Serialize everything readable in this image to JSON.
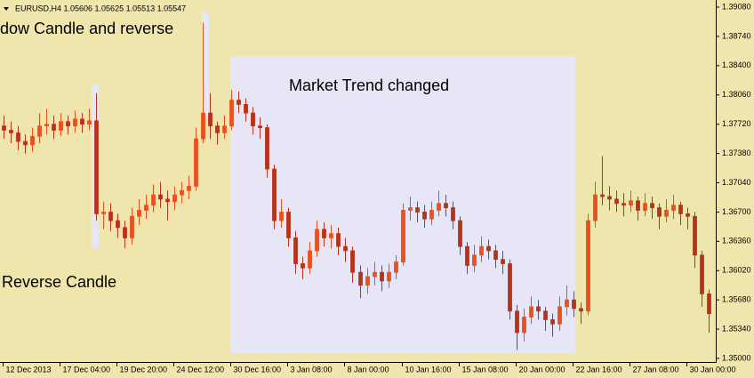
{
  "chart_data": {
    "type": "candlestick",
    "title": "EURUSD,H4  1.05606 1.05625 1.05513 1.05547",
    "annotations": [
      "dow Candle and reverse",
      "Market Trend changed",
      "Reverse Candle"
    ],
    "up_color": "#e8501e",
    "down_color": "#b8321a",
    "open": [
      1.377,
      1.3765,
      1.3762,
      1.3752,
      1.3748,
      1.3758,
      1.377,
      1.3772,
      1.3765,
      1.3775,
      1.377,
      1.3778,
      1.3772,
      1.3776,
      1.3668,
      1.367,
      1.366,
      1.3652,
      1.364,
      1.3665,
      1.3672,
      1.3678,
      1.369,
      1.3685,
      1.3682,
      1.369,
      1.3695,
      1.37,
      1.3755,
      1.3785,
      1.377,
      1.3762,
      1.377,
      1.38,
      1.3795,
      1.3785,
      1.377,
      1.3768,
      1.372,
      1.366,
      1.367,
      1.364,
      1.361,
      1.3605,
      1.3625,
      1.365,
      1.364,
      1.3645,
      1.363,
      1.3625,
      1.36,
      1.3585,
      1.3595,
      1.36,
      1.359,
      1.36,
      1.3612,
      1.3672,
      1.3675,
      1.367,
      1.3662,
      1.3672,
      1.368,
      1.3675,
      1.366,
      1.363,
      1.3608,
      1.362,
      1.363,
      1.3625,
      1.3615,
      1.361,
      1.3555,
      1.353,
      1.3548,
      1.356,
      1.3555,
      1.3545,
      1.354,
      1.356,
      1.3568,
      1.3558,
      1.3555,
      1.366,
      1.369,
      1.3688,
      1.3685,
      1.368,
      1.3678,
      1.3683,
      1.3672,
      1.368,
      1.3675,
      1.3665,
      1.3672,
      1.3678,
      1.3668,
      1.3665,
      1.362,
      1.3575
    ],
    "high": [
      1.3782,
      1.3775,
      1.377,
      1.376,
      1.3768,
      1.3785,
      1.379,
      1.3782,
      1.3785,
      1.3782,
      1.3788,
      1.3785,
      1.379,
      1.3808,
      1.3682,
      1.368,
      1.3668,
      1.366,
      1.3675,
      1.3685,
      1.369,
      1.3702,
      1.3705,
      1.3695,
      1.37,
      1.3705,
      1.3712,
      1.3768,
      1.389,
      1.3808,
      1.3775,
      1.3782,
      1.3812,
      1.381,
      1.3802,
      1.3792,
      1.378,
      1.3772,
      1.3725,
      1.3685,
      1.3675,
      1.3648,
      1.3618,
      1.3635,
      1.366,
      1.3658,
      1.3655,
      1.3652,
      1.364,
      1.363,
      1.3608,
      1.3605,
      1.3612,
      1.3608,
      1.361,
      1.362,
      1.368,
      1.3688,
      1.3682,
      1.3678,
      1.3682,
      1.3695,
      1.369,
      1.3682,
      1.3665,
      1.3635,
      1.3632,
      1.3642,
      1.3638,
      1.3632,
      1.3625,
      1.3615,
      1.3562,
      1.3558,
      1.3572,
      1.3568,
      1.356,
      1.3552,
      1.3572,
      1.3585,
      1.3578,
      1.3565,
      1.3668,
      1.3705,
      1.3735,
      1.37,
      1.3695,
      1.3692,
      1.3695,
      1.3688,
      1.3692,
      1.3688,
      1.368,
      1.3685,
      1.369,
      1.3682,
      1.3675,
      1.367,
      1.3625,
      1.358
    ],
    "low": [
      1.3755,
      1.375,
      1.3742,
      1.3738,
      1.374,
      1.375,
      1.376,
      1.3755,
      1.3758,
      1.376,
      1.3762,
      1.3762,
      1.3765,
      1.366,
      1.365,
      1.3648,
      1.364,
      1.3628,
      1.3632,
      1.3655,
      1.3662,
      1.367,
      1.3675,
      1.366,
      1.3672,
      1.368,
      1.3685,
      1.3695,
      1.375,
      1.3755,
      1.3748,
      1.3755,
      1.3765,
      1.3785,
      1.3775,
      1.376,
      1.3755,
      1.371,
      1.365,
      1.3652,
      1.363,
      1.3598,
      1.3592,
      1.3598,
      1.3618,
      1.363,
      1.3628,
      1.362,
      1.3612,
      1.3588,
      1.357,
      1.3575,
      1.3585,
      1.3578,
      1.3582,
      1.3592,
      1.3608,
      1.366,
      1.3658,
      1.3652,
      1.3655,
      1.3665,
      1.3665,
      1.365,
      1.362,
      1.3598,
      1.36,
      1.3612,
      1.3615,
      1.3605,
      1.3598,
      1.3545,
      1.351,
      1.352,
      1.354,
      1.3545,
      1.3532,
      1.3525,
      1.3532,
      1.355,
      1.3548,
      1.354,
      1.355,
      1.3652,
      1.3678,
      1.3672,
      1.367,
      1.3665,
      1.367,
      1.366,
      1.3665,
      1.3662,
      1.365,
      1.3658,
      1.3662,
      1.3655,
      1.365,
      1.3605,
      1.356,
      1.353
    ],
    "close": [
      1.3765,
      1.3762,
      1.3752,
      1.3748,
      1.3758,
      1.377,
      1.3772,
      1.3765,
      1.3775,
      1.377,
      1.3778,
      1.3772,
      1.3776,
      1.3668,
      1.367,
      1.366,
      1.3652,
      1.364,
      1.3665,
      1.3672,
      1.3678,
      1.369,
      1.3685,
      1.3682,
      1.369,
      1.3695,
      1.37,
      1.3755,
      1.3785,
      1.377,
      1.3762,
      1.377,
      1.38,
      1.3795,
      1.3785,
      1.377,
      1.3768,
      1.372,
      1.366,
      1.367,
      1.364,
      1.361,
      1.3605,
      1.3625,
      1.365,
      1.364,
      1.3645,
      1.363,
      1.3625,
      1.36,
      1.3585,
      1.3595,
      1.36,
      1.359,
      1.36,
      1.3612,
      1.3672,
      1.3675,
      1.367,
      1.3662,
      1.3672,
      1.368,
      1.3675,
      1.366,
      1.363,
      1.3608,
      1.362,
      1.363,
      1.3625,
      1.3615,
      1.361,
      1.3555,
      1.353,
      1.3548,
      1.356,
      1.3555,
      1.3545,
      1.354,
      1.356,
      1.3568,
      1.3558,
      1.3555,
      1.366,
      1.369,
      1.3688,
      1.3685,
      1.368,
      1.3678,
      1.3683,
      1.3672,
      1.368,
      1.3675,
      1.3665,
      1.3672,
      1.3678,
      1.3668,
      1.3665,
      1.362,
      1.3575,
      1.3552
    ],
    "xlim": [
      -0.5,
      100
    ],
    "xticks": [
      {
        "value": 0,
        "label": "12 Dec 2013"
      },
      {
        "value": 8,
        "label": "17 Dec 04:00"
      },
      {
        "value": 16,
        "label": "19 Dec 20:00"
      },
      {
        "value": 24,
        "label": "24 Dec 12:00"
      },
      {
        "value": 32,
        "label": "30 Dec 16:00"
      },
      {
        "value": 40,
        "label": "3 Jan 08:00"
      },
      {
        "value": 48,
        "label": "8 Jan 00:00"
      },
      {
        "value": 56,
        "label": "10 Jan 16:00"
      },
      {
        "value": 64,
        "label": "15 Jan 08:00"
      },
      {
        "value": 72,
        "label": "20 Jan 00:00"
      },
      {
        "value": 80,
        "label": "22 Jan 16:00"
      },
      {
        "value": 88,
        "label": "27 Jan 08:00"
      },
      {
        "value": 96,
        "label": "30 Jan 00:00"
      }
    ],
    "ylim": [
      1.35,
      1.3908
    ],
    "yticks": [
      {
        "value": 1.3908,
        "label": "1.39080"
      },
      {
        "value": 1.3874,
        "label": "1.38740"
      },
      {
        "value": 1.384,
        "label": "1.38400"
      },
      {
        "value": 1.3806,
        "label": "1.38060"
      },
      {
        "value": 1.3772,
        "label": "1.37720"
      },
      {
        "value": 1.3738,
        "label": "1.37380"
      },
      {
        "value": 1.3704,
        "label": "1.37040"
      },
      {
        "value": 1.367,
        "label": "1.36700"
      },
      {
        "value": 1.3636,
        "label": "1.36360"
      },
      {
        "value": 1.3602,
        "label": "1.36020"
      },
      {
        "value": 1.3568,
        "label": "1.35680"
      },
      {
        "value": 1.3534,
        "label": "1.35340"
      },
      {
        "value": 1.35,
        "label": "1.35000"
      }
    ]
  }
}
